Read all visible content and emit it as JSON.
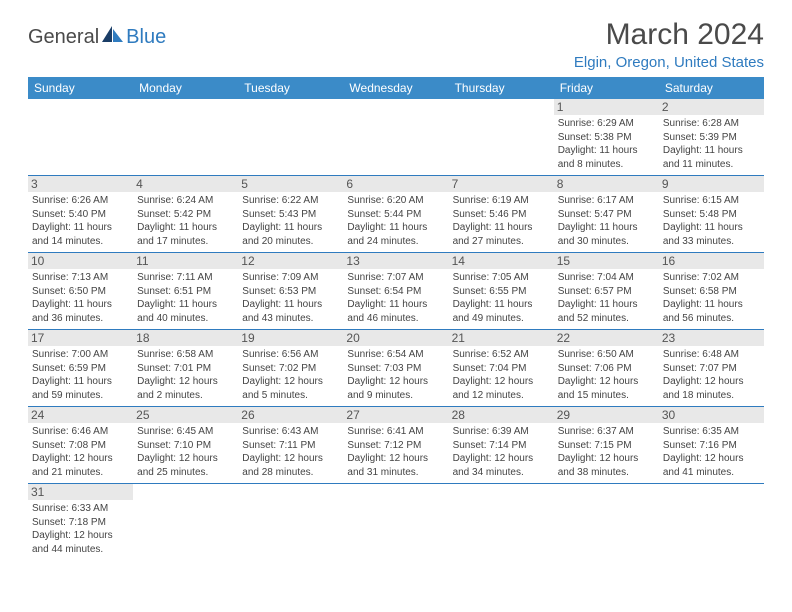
{
  "logo": {
    "dark": "General",
    "blue": "Blue"
  },
  "title": "March 2024",
  "location": "Elgin, Oregon, United States",
  "colors": {
    "header_bg": "#3b8bc8",
    "header_text": "#ffffff",
    "accent": "#2f7bbf",
    "daynum_bg": "#e8e8e8",
    "body_text": "#444444",
    "title_text": "#4a4a4a"
  },
  "weekdays": [
    "Sunday",
    "Monday",
    "Tuesday",
    "Wednesday",
    "Thursday",
    "Friday",
    "Saturday"
  ],
  "first_weekday_index": 5,
  "days": [
    {
      "n": 1,
      "sunrise": "6:29 AM",
      "sunset": "5:38 PM",
      "daylight": "11 hours and 8 minutes."
    },
    {
      "n": 2,
      "sunrise": "6:28 AM",
      "sunset": "5:39 PM",
      "daylight": "11 hours and 11 minutes."
    },
    {
      "n": 3,
      "sunrise": "6:26 AM",
      "sunset": "5:40 PM",
      "daylight": "11 hours and 14 minutes."
    },
    {
      "n": 4,
      "sunrise": "6:24 AM",
      "sunset": "5:42 PM",
      "daylight": "11 hours and 17 minutes."
    },
    {
      "n": 5,
      "sunrise": "6:22 AM",
      "sunset": "5:43 PM",
      "daylight": "11 hours and 20 minutes."
    },
    {
      "n": 6,
      "sunrise": "6:20 AM",
      "sunset": "5:44 PM",
      "daylight": "11 hours and 24 minutes."
    },
    {
      "n": 7,
      "sunrise": "6:19 AM",
      "sunset": "5:46 PM",
      "daylight": "11 hours and 27 minutes."
    },
    {
      "n": 8,
      "sunrise": "6:17 AM",
      "sunset": "5:47 PM",
      "daylight": "11 hours and 30 minutes."
    },
    {
      "n": 9,
      "sunrise": "6:15 AM",
      "sunset": "5:48 PM",
      "daylight": "11 hours and 33 minutes."
    },
    {
      "n": 10,
      "sunrise": "7:13 AM",
      "sunset": "6:50 PM",
      "daylight": "11 hours and 36 minutes."
    },
    {
      "n": 11,
      "sunrise": "7:11 AM",
      "sunset": "6:51 PM",
      "daylight": "11 hours and 40 minutes."
    },
    {
      "n": 12,
      "sunrise": "7:09 AM",
      "sunset": "6:53 PM",
      "daylight": "11 hours and 43 minutes."
    },
    {
      "n": 13,
      "sunrise": "7:07 AM",
      "sunset": "6:54 PM",
      "daylight": "11 hours and 46 minutes."
    },
    {
      "n": 14,
      "sunrise": "7:05 AM",
      "sunset": "6:55 PM",
      "daylight": "11 hours and 49 minutes."
    },
    {
      "n": 15,
      "sunrise": "7:04 AM",
      "sunset": "6:57 PM",
      "daylight": "11 hours and 52 minutes."
    },
    {
      "n": 16,
      "sunrise": "7:02 AM",
      "sunset": "6:58 PM",
      "daylight": "11 hours and 56 minutes."
    },
    {
      "n": 17,
      "sunrise": "7:00 AM",
      "sunset": "6:59 PM",
      "daylight": "11 hours and 59 minutes."
    },
    {
      "n": 18,
      "sunrise": "6:58 AM",
      "sunset": "7:01 PM",
      "daylight": "12 hours and 2 minutes."
    },
    {
      "n": 19,
      "sunrise": "6:56 AM",
      "sunset": "7:02 PM",
      "daylight": "12 hours and 5 minutes."
    },
    {
      "n": 20,
      "sunrise": "6:54 AM",
      "sunset": "7:03 PM",
      "daylight": "12 hours and 9 minutes."
    },
    {
      "n": 21,
      "sunrise": "6:52 AM",
      "sunset": "7:04 PM",
      "daylight": "12 hours and 12 minutes."
    },
    {
      "n": 22,
      "sunrise": "6:50 AM",
      "sunset": "7:06 PM",
      "daylight": "12 hours and 15 minutes."
    },
    {
      "n": 23,
      "sunrise": "6:48 AM",
      "sunset": "7:07 PM",
      "daylight": "12 hours and 18 minutes."
    },
    {
      "n": 24,
      "sunrise": "6:46 AM",
      "sunset": "7:08 PM",
      "daylight": "12 hours and 21 minutes."
    },
    {
      "n": 25,
      "sunrise": "6:45 AM",
      "sunset": "7:10 PM",
      "daylight": "12 hours and 25 minutes."
    },
    {
      "n": 26,
      "sunrise": "6:43 AM",
      "sunset": "7:11 PM",
      "daylight": "12 hours and 28 minutes."
    },
    {
      "n": 27,
      "sunrise": "6:41 AM",
      "sunset": "7:12 PM",
      "daylight": "12 hours and 31 minutes."
    },
    {
      "n": 28,
      "sunrise": "6:39 AM",
      "sunset": "7:14 PM",
      "daylight": "12 hours and 34 minutes."
    },
    {
      "n": 29,
      "sunrise": "6:37 AM",
      "sunset": "7:15 PM",
      "daylight": "12 hours and 38 minutes."
    },
    {
      "n": 30,
      "sunrise": "6:35 AM",
      "sunset": "7:16 PM",
      "daylight": "12 hours and 41 minutes."
    },
    {
      "n": 31,
      "sunrise": "6:33 AM",
      "sunset": "7:18 PM",
      "daylight": "12 hours and 44 minutes."
    }
  ],
  "labels": {
    "sunrise": "Sunrise:",
    "sunset": "Sunset:",
    "daylight": "Daylight:"
  }
}
